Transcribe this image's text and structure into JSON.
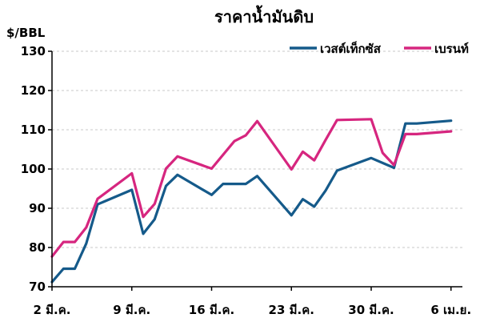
{
  "chart_data": {
    "type": "line",
    "title": "ราคาน้ำมันดิบ",
    "ylabel": "$/BBL",
    "xlabel": "",
    "ylim": [
      70,
      130
    ],
    "yticks": [
      70,
      80,
      90,
      100,
      110,
      120,
      130
    ],
    "xlim": [
      2,
      38
    ],
    "xticks": [
      {
        "x": 2,
        "label": "2 มี.ค."
      },
      {
        "x": 9,
        "label": "9 มี.ค."
      },
      {
        "x": 16,
        "label": "16 มี.ค."
      },
      {
        "x": 23,
        "label": "23 มี.ค."
      },
      {
        "x": 30,
        "label": "30 มี.ค."
      },
      {
        "x": 37,
        "label": "6 เม.ย."
      }
    ],
    "grid": true,
    "legend_position": "top-right",
    "series": [
      {
        "name": "เวสต์เท็กซัส",
        "color": "#155a8a",
        "points": [
          [
            2,
            71.2
          ],
          [
            3,
            74.6
          ],
          [
            4,
            74.6
          ],
          [
            5,
            81.0
          ],
          [
            6,
            91.0
          ],
          [
            9,
            94.7
          ],
          [
            10,
            83.5
          ],
          [
            11,
            87.2
          ],
          [
            12,
            95.7
          ],
          [
            13,
            98.5
          ],
          [
            16,
            93.4
          ],
          [
            17,
            96.2
          ],
          [
            19,
            96.2
          ],
          [
            20,
            98.2
          ],
          [
            23,
            88.2
          ],
          [
            24,
            92.3
          ],
          [
            25,
            90.4
          ],
          [
            26,
            94.5
          ],
          [
            27,
            99.6
          ],
          [
            30,
            102.8
          ],
          [
            32,
            100.3
          ],
          [
            33,
            111.6
          ],
          [
            34,
            111.6
          ],
          [
            37,
            112.3
          ]
        ]
      },
      {
        "name": "เบรนท์",
        "color": "#d6267f",
        "points": [
          [
            2,
            77.7
          ],
          [
            3,
            81.4
          ],
          [
            4,
            81.4
          ],
          [
            5,
            85.1
          ],
          [
            6,
            92.4
          ],
          [
            9,
            98.9
          ],
          [
            10,
            87.8
          ],
          [
            11,
            91.1
          ],
          [
            12,
            100.1
          ],
          [
            13,
            103.2
          ],
          [
            16,
            100.1
          ],
          [
            18,
            107.1
          ],
          [
            19,
            108.6
          ],
          [
            20,
            112.2
          ],
          [
            23,
            99.9
          ],
          [
            24,
            104.4
          ],
          [
            25,
            102.2
          ],
          [
            26,
            107.4
          ],
          [
            27,
            112.5
          ],
          [
            30,
            112.7
          ],
          [
            31,
            104.1
          ],
          [
            32,
            101.0
          ],
          [
            33,
            108.9
          ],
          [
            34,
            108.9
          ],
          [
            37,
            109.6
          ]
        ]
      }
    ]
  }
}
